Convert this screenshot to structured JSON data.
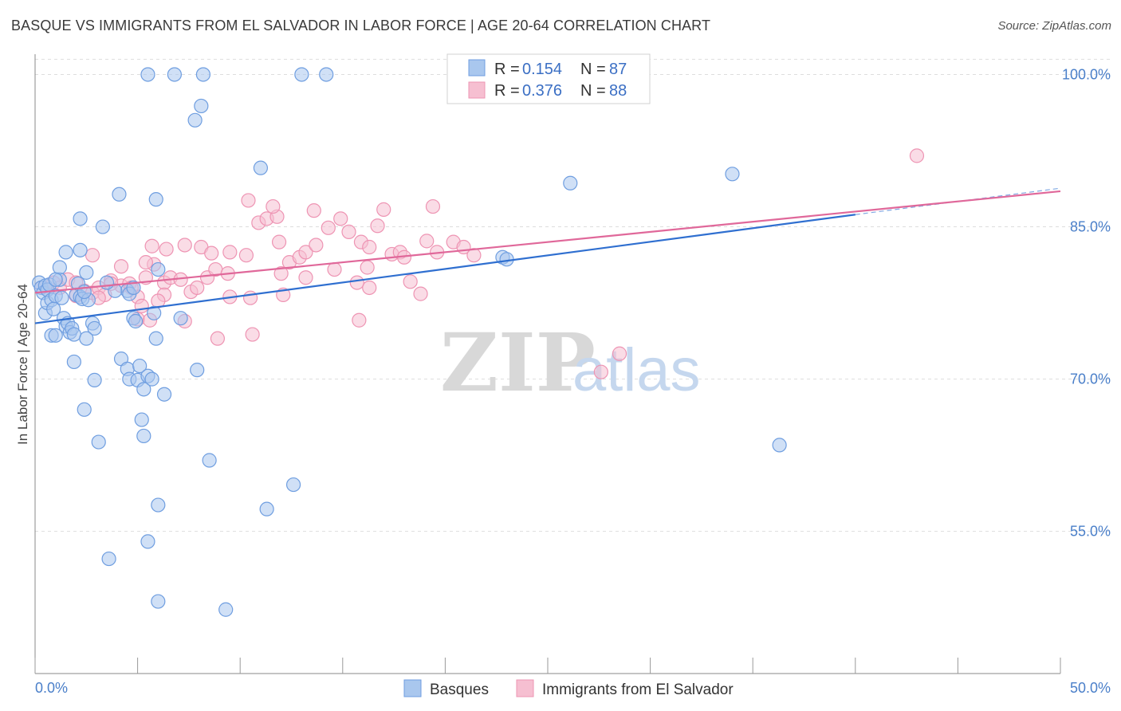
{
  "title": "BASQUE VS IMMIGRANTS FROM EL SALVADOR IN LABOR FORCE | AGE 20-64 CORRELATION CHART",
  "source": "Source: ZipAtlas.com",
  "watermark": {
    "zip": "ZIP",
    "atlas": "atlas"
  },
  "colors": {
    "blue_fill": "#a9c7ee",
    "blue_stroke": "#6f9ee0",
    "blue_line": "#2f6fd0",
    "pink_fill": "#f6bfd1",
    "pink_stroke": "#ee94b3",
    "pink_line": "#e0689a",
    "grid": "#dddddd",
    "axis_label": "#4a7fc9"
  },
  "legend": {
    "r_label": "R =",
    "n_label": "N =",
    "items": [
      {
        "r": "0.154",
        "n": "87"
      },
      {
        "r": "0.376",
        "n": "88"
      }
    ]
  },
  "chart_data": {
    "type": "scatter",
    "title": "BASQUE VS IMMIGRANTS FROM EL SALVADOR IN LABOR FORCE | AGE 20-64 CORRELATION CHART",
    "xlabel": "",
    "ylabel": "In Labor Force | Age 20-64",
    "xlim": [
      0,
      50
    ],
    "ylim": [
      41,
      102
    ],
    "x_tick_labels": [
      "0.0%",
      "50.0%"
    ],
    "y_ticks": [
      55,
      70,
      85,
      100
    ],
    "y_tick_labels": [
      "55.0%",
      "70.0%",
      "85.0%",
      "100.0%"
    ],
    "grid": true,
    "series": [
      {
        "name": "Basques",
        "r": 0.154,
        "n": 87,
        "trend": {
          "x": [
            0,
            40
          ],
          "y": [
            75.5,
            86.2
          ]
        },
        "trend_dashed_ext": {
          "x": [
            40,
            50
          ],
          "y": [
            86.2,
            88.8
          ]
        },
        "points": [
          [
            0.2,
            79.5
          ],
          [
            0.3,
            79.0
          ],
          [
            0.4,
            78.5
          ],
          [
            0.5,
            79.2
          ],
          [
            0.6,
            78.8
          ],
          [
            0.7,
            79.3
          ],
          [
            0.5,
            76.5
          ],
          [
            0.6,
            77.5
          ],
          [
            0.8,
            77.8
          ],
          [
            0.9,
            76.9
          ],
          [
            1.0,
            78.2
          ],
          [
            1.2,
            79.8
          ],
          [
            1.3,
            78.0
          ],
          [
            1.4,
            76.0
          ],
          [
            1.5,
            75.2
          ],
          [
            1.6,
            75.5
          ],
          [
            1.7,
            74.6
          ],
          [
            1.8,
            75.0
          ],
          [
            1.9,
            74.4
          ],
          [
            2.0,
            78.3
          ],
          [
            2.1,
            79.4
          ],
          [
            2.2,
            78.1
          ],
          [
            2.3,
            77.9
          ],
          [
            2.5,
            80.5
          ],
          [
            2.6,
            77.8
          ],
          [
            2.8,
            75.5
          ],
          [
            2.9,
            75.0
          ],
          [
            1.2,
            81.0
          ],
          [
            1.5,
            82.5
          ],
          [
            2.2,
            82.7
          ],
          [
            2.2,
            85.8
          ],
          [
            3.3,
            85.0
          ],
          [
            4.1,
            88.2
          ],
          [
            5.9,
            87.7
          ],
          [
            6.0,
            80.8
          ],
          [
            4.5,
            78.7
          ],
          [
            4.6,
            78.4
          ],
          [
            4.8,
            79.0
          ],
          [
            4.8,
            76.0
          ],
          [
            4.9,
            75.7
          ],
          [
            0.8,
            74.3
          ],
          [
            1.0,
            74.3
          ],
          [
            2.5,
            74.0
          ],
          [
            1.9,
            71.7
          ],
          [
            2.9,
            69.9
          ],
          [
            2.4,
            67.0
          ],
          [
            3.1,
            63.8
          ],
          [
            4.2,
            72.0
          ],
          [
            4.5,
            71.0
          ],
          [
            4.6,
            70.0
          ],
          [
            5.0,
            69.9
          ],
          [
            5.1,
            71.3
          ],
          [
            5.3,
            69.0
          ],
          [
            5.5,
            70.3
          ],
          [
            5.7,
            70.0
          ],
          [
            5.2,
            66.0
          ],
          [
            5.3,
            64.4
          ],
          [
            5.8,
            76.5
          ],
          [
            5.9,
            74.0
          ],
          [
            6.3,
            68.5
          ],
          [
            6.0,
            57.6
          ],
          [
            5.5,
            54.0
          ],
          [
            3.6,
            52.3
          ],
          [
            6.0,
            48.1
          ],
          [
            7.1,
            76.0
          ],
          [
            7.8,
            95.5
          ],
          [
            8.1,
            96.9
          ],
          [
            7.9,
            70.9
          ],
          [
            8.5,
            62.0
          ],
          [
            11.0,
            90.8
          ],
          [
            9.3,
            47.3
          ],
          [
            11.3,
            57.2
          ],
          [
            12.6,
            59.6
          ],
          [
            5.5,
            100.0
          ],
          [
            6.8,
            100.0
          ],
          [
            8.2,
            100.0
          ],
          [
            13.0,
            100.0
          ],
          [
            14.2,
            100.0
          ],
          [
            22.8,
            82.0
          ],
          [
            23.0,
            81.8
          ],
          [
            26.1,
            89.3
          ],
          [
            34.0,
            90.2
          ],
          [
            36.3,
            63.5
          ],
          [
            3.9,
            78.7
          ],
          [
            3.5,
            79.5
          ],
          [
            1.0,
            79.8
          ],
          [
            2.4,
            78.6
          ]
        ]
      },
      {
        "name": "Immigrants from El Salvador",
        "r": 0.376,
        "n": 88,
        "trend": {
          "x": [
            0,
            50
          ],
          "y": [
            78.5,
            88.5
          ]
        },
        "points": [
          [
            0.3,
            79.0
          ],
          [
            0.6,
            78.8
          ],
          [
            0.9,
            79.5
          ],
          [
            1.2,
            79.0
          ],
          [
            1.6,
            79.8
          ],
          [
            2.0,
            79.5
          ],
          [
            2.4,
            78.7
          ],
          [
            2.8,
            78.5
          ],
          [
            3.1,
            79.0
          ],
          [
            3.4,
            78.3
          ],
          [
            3.7,
            79.7
          ],
          [
            4.2,
            79.2
          ],
          [
            4.6,
            79.4
          ],
          [
            5.0,
            78.1
          ],
          [
            5.4,
            80.0
          ],
          [
            5.8,
            81.3
          ],
          [
            6.3,
            79.5
          ],
          [
            6.6,
            80.0
          ],
          [
            7.1,
            79.8
          ],
          [
            7.6,
            78.6
          ],
          [
            7.9,
            79.0
          ],
          [
            8.4,
            80.0
          ],
          [
            8.8,
            80.8
          ],
          [
            9.4,
            80.4
          ],
          [
            3.7,
            79.4
          ],
          [
            2.8,
            82.2
          ],
          [
            4.2,
            81.1
          ],
          [
            5.4,
            81.5
          ],
          [
            5.7,
            83.1
          ],
          [
            6.4,
            82.8
          ],
          [
            7.3,
            83.2
          ],
          [
            8.1,
            83.0
          ],
          [
            8.6,
            82.4
          ],
          [
            9.5,
            82.5
          ],
          [
            10.3,
            82.2
          ],
          [
            10.9,
            85.4
          ],
          [
            11.3,
            85.8
          ],
          [
            11.8,
            86.0
          ],
          [
            11.6,
            87.0
          ],
          [
            10.4,
            87.6
          ],
          [
            11.9,
            83.5
          ],
          [
            12.4,
            81.5
          ],
          [
            12.9,
            82.0
          ],
          [
            13.2,
            82.5
          ],
          [
            13.7,
            83.2
          ],
          [
            14.3,
            84.9
          ],
          [
            14.9,
            85.8
          ],
          [
            15.3,
            84.5
          ],
          [
            15.9,
            83.5
          ],
          [
            16.3,
            83.0
          ],
          [
            16.7,
            85.1
          ],
          [
            17.0,
            86.7
          ],
          [
            17.4,
            82.3
          ],
          [
            17.8,
            82.5
          ],
          [
            18.3,
            79.6
          ],
          [
            18.8,
            78.4
          ],
          [
            19.1,
            83.6
          ],
          [
            19.4,
            87.0
          ],
          [
            19.6,
            82.5
          ],
          [
            20.4,
            83.5
          ],
          [
            20.9,
            83.0
          ],
          [
            21.4,
            82.2
          ],
          [
            13.6,
            86.6
          ],
          [
            12.0,
            80.4
          ],
          [
            13.2,
            80.0
          ],
          [
            12.1,
            78.3
          ],
          [
            9.5,
            78.1
          ],
          [
            10.5,
            78.0
          ],
          [
            16.3,
            79.0
          ],
          [
            15.7,
            79.5
          ],
          [
            16.2,
            81.0
          ],
          [
            6.3,
            78.3
          ],
          [
            7.3,
            75.7
          ],
          [
            8.9,
            74.0
          ],
          [
            10.6,
            74.4
          ],
          [
            5.0,
            75.9
          ],
          [
            5.6,
            75.8
          ],
          [
            15.8,
            75.8
          ],
          [
            14.6,
            80.8
          ],
          [
            18.0,
            82.0
          ],
          [
            4.7,
            79.0
          ],
          [
            27.6,
            70.7
          ],
          [
            28.5,
            72.5
          ],
          [
            43.0,
            92.0
          ],
          [
            3.1,
            78.0
          ],
          [
            2.0,
            78.2
          ],
          [
            6.0,
            77.7
          ],
          [
            5.2,
            77.2
          ]
        ]
      }
    ]
  },
  "bottom_legend": {
    "items": [
      "Basques",
      "Immigrants from El Salvador"
    ]
  }
}
